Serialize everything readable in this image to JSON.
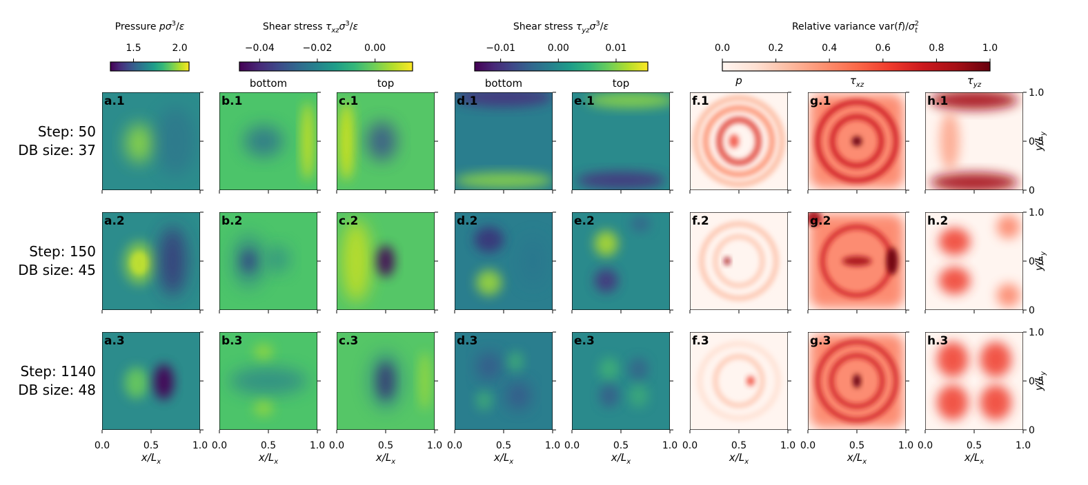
{
  "chart_data": {
    "type": "heatmap",
    "colorbars": [
      {
        "id": "pressure",
        "title": "Pressure pσ³/ε",
        "title_parts": [
          "Pressure ",
          "p",
          "σ",
          "3",
          "/",
          "ε"
        ],
        "colormap": "viridis",
        "range": [
          1.25,
          2.1
        ],
        "ticks": [
          1.5,
          2.0
        ],
        "tick_labels": [
          "1.5",
          "2.0"
        ]
      },
      {
        "id": "tau_xz",
        "title": "Shear stress τxzσ³/ε",
        "title_parts": [
          "Shear stress ",
          "τ",
          "xz",
          "σ",
          "3",
          "/",
          "ε"
        ],
        "colormap": "viridis",
        "range": [
          -0.047,
          0.013
        ],
        "ticks": [
          -0.04,
          -0.02,
          0.0
        ],
        "tick_labels": [
          "−0.04",
          "−0.02",
          "0.00"
        ]
      },
      {
        "id": "tau_yz",
        "title": "Shear stress τyzσ³/ε",
        "title_parts": [
          "Shear stress ",
          "τ",
          "yz",
          "σ",
          "3",
          "/",
          "ε"
        ],
        "colormap": "viridis",
        "range": [
          -0.0145,
          0.0155
        ],
        "ticks": [
          -0.01,
          0.0,
          0.01
        ],
        "tick_labels": [
          "−0.01",
          "0.00",
          "0.01"
        ]
      },
      {
        "id": "variance",
        "title": "Relative variance var(f)/σt²",
        "title_parts": [
          "Relative variance var(",
          "f",
          ")/",
          "σ",
          "2",
          "t"
        ],
        "colormap": "reds",
        "range": [
          0.0,
          1.0
        ],
        "ticks": [
          0.0,
          0.2,
          0.4,
          0.6,
          0.8,
          1.0
        ],
        "tick_labels": [
          "0.0",
          "0.2",
          "0.4",
          "0.6",
          "0.8",
          "1.0"
        ]
      }
    ],
    "column_subtitles": [
      {
        "column": "b",
        "text": "bottom"
      },
      {
        "column": "c",
        "text": "top"
      },
      {
        "column": "d",
        "text": "bottom"
      },
      {
        "column": "e",
        "text": "top"
      },
      {
        "column": "f",
        "text": "p",
        "italic": true
      },
      {
        "column": "g",
        "text": "τxz",
        "main": "τ",
        "sub": "xz"
      },
      {
        "column": "h",
        "text": "τyz",
        "main": "τ",
        "sub": "yz"
      }
    ],
    "rows": [
      {
        "step_label": "Step: 50",
        "db_label": "DB size: 37"
      },
      {
        "step_label": "Step: 150",
        "db_label": "DB size: 45"
      },
      {
        "step_label": "Step: 1140",
        "db_label": "DB size: 48"
      }
    ],
    "panel_labels": [
      [
        "a.1",
        "b.1",
        "c.1",
        "d.1",
        "e.1",
        "f.1",
        "g.1",
        "h.1"
      ],
      [
        "a.2",
        "b.2",
        "c.2",
        "d.2",
        "e.2",
        "f.2",
        "g.2",
        "h.2"
      ],
      [
        "a.3",
        "b.3",
        "c.3",
        "d.3",
        "e.3",
        "f.3",
        "g.3",
        "h.3"
      ]
    ],
    "x_axis": {
      "label": "x/Lx",
      "main": "x/L",
      "sub": "x",
      "range": [
        0,
        1
      ],
      "ticks": [
        0,
        0.5,
        1
      ],
      "tick_labels": [
        "0.0",
        "0.5",
        "1.0"
      ]
    },
    "y_axis": {
      "label": "y/Ly",
      "main": "y/L",
      "sub": "y",
      "range": [
        0,
        1
      ],
      "ticks": [
        0,
        0.5,
        1
      ],
      "tick_labels": [
        "0",
        "0.5",
        "1.0"
      ]
    },
    "grid": false
  }
}
